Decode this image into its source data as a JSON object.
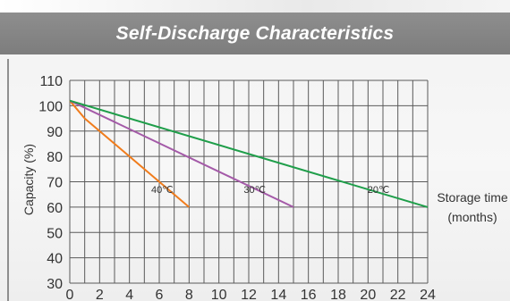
{
  "chart_data": {
    "type": "line",
    "title": "Self-Discharge Characteristics",
    "ylabel": "Capacity (%)",
    "xlabel": "Storage time",
    "xlabel_unit": "(months)",
    "xlim": [
      0,
      24
    ],
    "ylim": [
      30,
      110
    ],
    "x_ticks": [
      0,
      2,
      4,
      6,
      8,
      10,
      12,
      14,
      16,
      18,
      20,
      22,
      24
    ],
    "y_ticks": [
      30,
      40,
      50,
      60,
      70,
      80,
      90,
      100,
      110
    ],
    "grid": true,
    "legend": "none",
    "series": [
      {
        "name": "40℃",
        "color": "#f07c1c",
        "points": [
          [
            0,
            102
          ],
          [
            1,
            95
          ],
          [
            8,
            60
          ]
        ],
        "label_at": [
          6.2,
          67
        ]
      },
      {
        "name": "30℃",
        "color": "#a45aa8",
        "points": [
          [
            0,
            102
          ],
          [
            15,
            60
          ]
        ],
        "label_at": [
          12.4,
          67
        ]
      },
      {
        "name": "20℃",
        "color": "#1f9e4a",
        "points": [
          [
            0,
            102
          ],
          [
            24,
            60
          ]
        ],
        "label_at": [
          20.7,
          67
        ]
      }
    ]
  }
}
